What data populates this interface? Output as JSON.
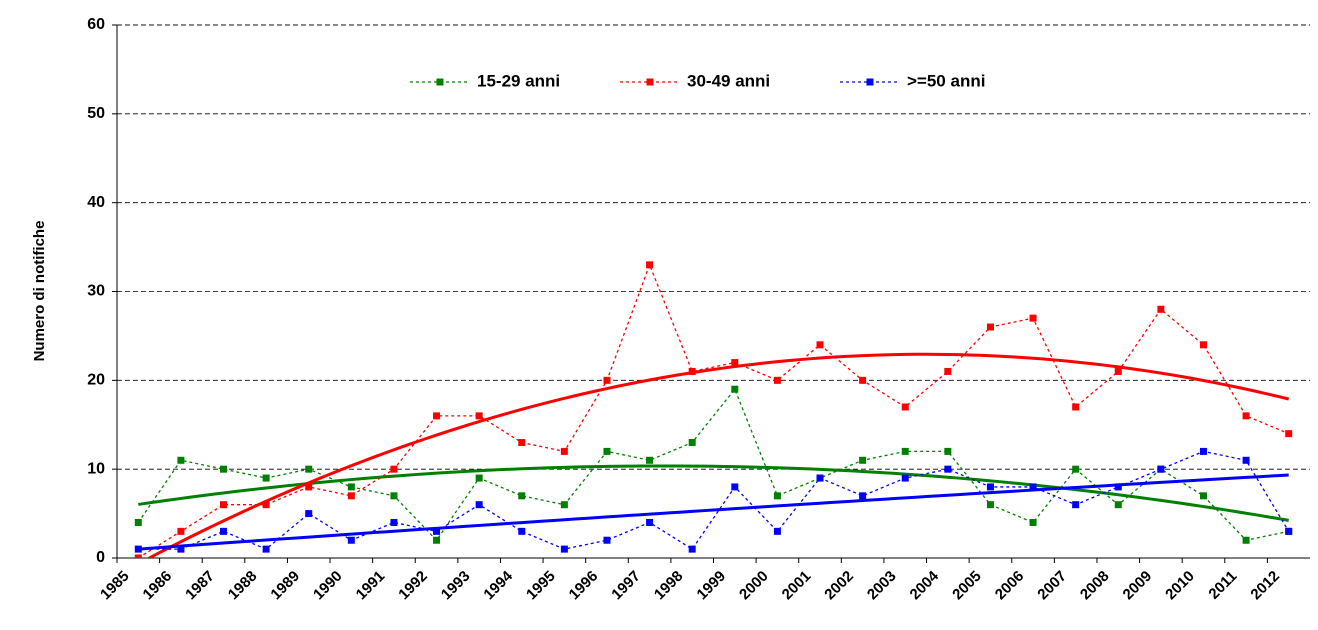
{
  "chart_data": {
    "type": "line",
    "y_label": "Numero di notifiche",
    "categories": [
      "1985",
      "1986",
      "1987",
      "1988",
      "1989",
      "1990",
      "1991",
      "1992",
      "1993",
      "1994",
      "1995",
      "1996",
      "1997",
      "1998",
      "1999",
      "2000",
      "2001",
      "2002",
      "2003",
      "2004",
      "2005",
      "2006",
      "2007",
      "2008",
      "2009",
      "2010",
      "2011",
      "2012"
    ],
    "series": [
      {
        "name": "15-29 anni",
        "color": "#008000",
        "values": [
          4,
          11,
          10,
          9,
          10,
          8,
          7,
          2,
          9,
          7,
          6,
          12,
          11,
          13,
          19,
          7,
          9,
          11,
          12,
          12,
          6,
          4,
          10,
          6,
          10,
          7,
          2,
          3
        ]
      },
      {
        "name": "30-49 anni",
        "color": "#ff0000",
        "values": [
          0,
          3,
          6,
          6,
          8,
          7,
          10,
          16,
          16,
          13,
          12,
          20,
          33,
          21,
          22,
          20,
          24,
          20,
          17,
          21,
          26,
          27,
          17,
          21,
          28,
          24,
          16,
          14
        ]
      },
      {
        "name": ">=50 anni",
        "color": "#0000ff",
        "values": [
          1,
          1,
          3,
          1,
          5,
          2,
          4,
          3,
          6,
          3,
          1,
          2,
          4,
          1,
          8,
          3,
          9,
          7,
          9,
          10,
          8,
          8,
          6,
          8,
          10,
          12,
          11,
          3
        ]
      }
    ],
    "ylim": [
      0,
      60
    ],
    "yticks": [
      0,
      10,
      20,
      30,
      40,
      50,
      60
    ],
    "grid": true,
    "legend": "top",
    "trendline": {
      "type": "polynomial",
      "order": 2
    }
  }
}
